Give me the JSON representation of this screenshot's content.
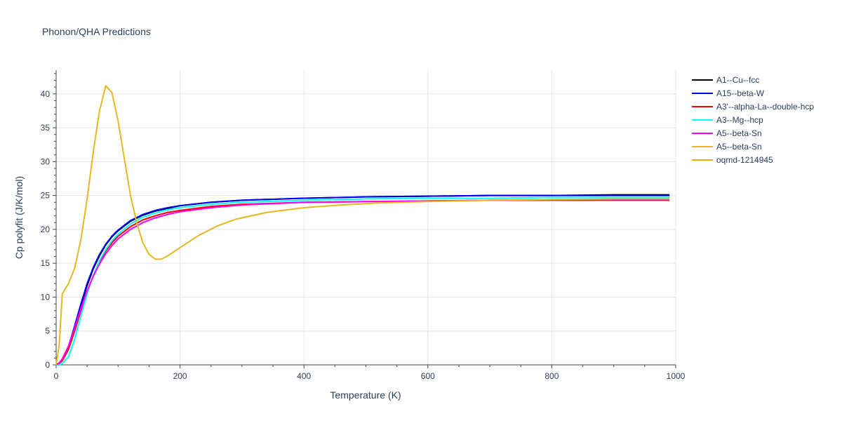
{
  "chart_data": {
    "type": "line",
    "title": "Phonon/QHA Predictions",
    "xlabel": "Temperature (K)",
    "ylabel": "Cp polyfit (J/K/mol)",
    "xlim": [
      0,
      1000
    ],
    "ylim": [
      0,
      43.5
    ],
    "xticks": [
      0,
      200,
      400,
      600,
      800,
      1000
    ],
    "yticks": [
      0,
      5,
      10,
      15,
      20,
      25,
      30,
      35,
      40
    ],
    "grid": true,
    "legend_position": "top-right",
    "series": [
      {
        "name": "A1--Cu--fcc",
        "color": "#000000",
        "x": [
          0,
          5,
          10,
          20,
          30,
          40,
          50,
          60,
          70,
          80,
          90,
          100,
          120,
          140,
          160,
          180,
          200,
          250,
          300,
          400,
          500,
          600,
          700,
          800,
          900,
          990
        ],
        "y": [
          0,
          0.2,
          0.7,
          2.6,
          5.6,
          8.8,
          11.7,
          14.2,
          16.1,
          17.7,
          18.9,
          19.8,
          21.2,
          22.1,
          22.7,
          23.1,
          23.5,
          24.0,
          24.3,
          24.6,
          24.8,
          24.9,
          25.0,
          25.0,
          25.1,
          25.1
        ]
      },
      {
        "name": "A15--beta-W",
        "color": "#0000ff",
        "x": [
          0,
          5,
          10,
          20,
          30,
          40,
          50,
          60,
          70,
          80,
          90,
          100,
          120,
          140,
          160,
          180,
          200,
          250,
          300,
          400,
          500,
          600,
          700,
          800,
          900,
          990
        ],
        "y": [
          0,
          0.2,
          0.7,
          2.7,
          5.8,
          9.0,
          12.0,
          14.4,
          16.3,
          17.8,
          19.0,
          19.9,
          21.3,
          22.2,
          22.8,
          23.2,
          23.5,
          24.0,
          24.3,
          24.6,
          24.8,
          24.9,
          25.0,
          25.0,
          25.0,
          25.0
        ]
      },
      {
        "name": "A3'--alpha-La--double-hcp",
        "color": "#ff0000",
        "x": [
          0,
          5,
          10,
          20,
          30,
          40,
          50,
          60,
          70,
          80,
          90,
          100,
          120,
          140,
          160,
          180,
          200,
          250,
          300,
          400,
          500,
          600,
          700,
          800,
          900,
          990
        ],
        "y": [
          0,
          0.2,
          0.6,
          2.3,
          5.0,
          8.0,
          10.8,
          13.2,
          15.2,
          16.8,
          18.0,
          19.0,
          20.4,
          21.4,
          22.0,
          22.5,
          22.8,
          23.4,
          23.7,
          24.0,
          24.1,
          24.2,
          24.3,
          24.3,
          24.3,
          24.3
        ]
      },
      {
        "name": "A3--Mg--hcp",
        "color": "#00ffff",
        "x": [
          0,
          5,
          10,
          20,
          30,
          40,
          50,
          60,
          70,
          80,
          90,
          100,
          120,
          140,
          160,
          180,
          200,
          250,
          300,
          400,
          500,
          600,
          700,
          800,
          900,
          990
        ],
        "y": [
          0,
          0,
          0.2,
          1.2,
          3.8,
          7.2,
          10.5,
          13.2,
          15.4,
          17.0,
          18.3,
          19.3,
          20.8,
          21.8,
          22.4,
          22.9,
          23.2,
          23.7,
          24.0,
          24.3,
          24.5,
          24.6,
          24.6,
          24.7,
          24.7,
          24.7
        ]
      },
      {
        "name": "A5--beta-Sn",
        "color": "#ff00ff",
        "x": [
          0,
          5,
          10,
          20,
          30,
          40,
          50,
          60,
          70,
          80,
          90,
          100,
          120,
          140,
          160,
          180,
          200,
          250,
          300,
          400,
          500,
          600,
          700,
          800,
          900,
          990
        ],
        "y": [
          0,
          0.3,
          0.9,
          2.8,
          5.5,
          8.3,
          10.9,
          13.1,
          14.9,
          16.4,
          17.6,
          18.6,
          20.0,
          21.0,
          21.7,
          22.2,
          22.6,
          23.2,
          23.6,
          24.0,
          24.1,
          24.2,
          24.3,
          24.4,
          24.4,
          24.4
        ]
      },
      {
        "name": "A5--beta-Sn",
        "color": "#e6b81e",
        "x": [
          0,
          5,
          10,
          20,
          30,
          40,
          50,
          60,
          70,
          80,
          90,
          100,
          110,
          120,
          130,
          140,
          150,
          160,
          170,
          180,
          200,
          230,
          260,
          290,
          340,
          400,
          460,
          520,
          600,
          700,
          800,
          900,
          990
        ],
        "y": [
          0,
          3.0,
          10.5,
          12.0,
          14.3,
          18.5,
          24.5,
          31.5,
          37.5,
          41.2,
          40.2,
          36.0,
          30.5,
          25.0,
          21.0,
          18.0,
          16.3,
          15.6,
          15.6,
          16.1,
          17.3,
          19.1,
          20.5,
          21.5,
          22.5,
          23.2,
          23.6,
          23.9,
          24.1,
          24.3,
          24.4,
          24.5,
          24.5
        ]
      },
      {
        "name": "oqmd-1214945",
        "color": "#f2a900",
        "x": [],
        "y": []
      }
    ]
  }
}
